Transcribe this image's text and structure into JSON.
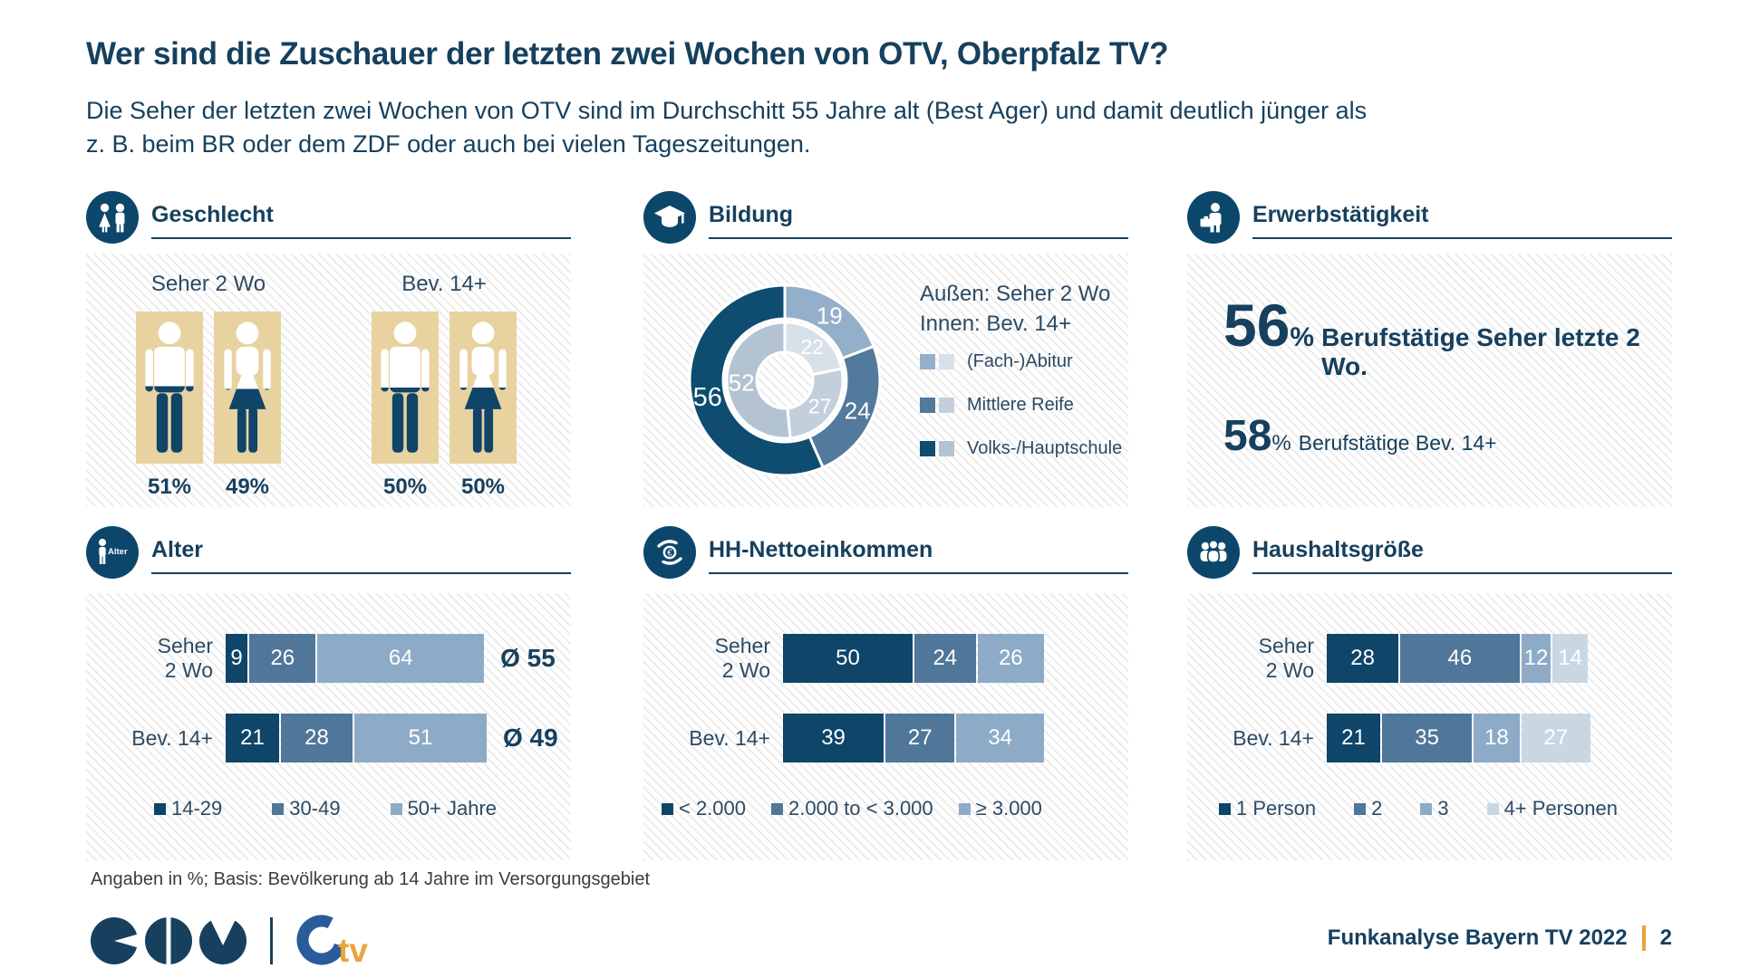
{
  "page": {
    "title": "Wer sind die Zuschauer der letzten zwei Wochen von OTV, Oberpfalz TV?",
    "subtitle": "Die Seher der letzten zwei Wochen von OTV sind im Durchschitt 55 Jahre alt (Best Ager) und damit deutlich jünger als\nz. B. beim BR oder dem ZDF oder auch bei vielen Tageszeitungen.",
    "footnote": "Angaben in %; Basis: Bevölkerung ab 14 Jahre im Versorgungsgebiet",
    "footer_right": {
      "label": "Funkanalyse Bayern TV 2022",
      "page_number": "2"
    }
  },
  "colors": {
    "navy": "#0e4569",
    "slate": "#50769a",
    "light": "#8dabc7",
    "pale": "#c9d7e3",
    "donut_outer": [
      "#94afca",
      "#53799c",
      "#0e4c70"
    ],
    "donut_inner": [
      "#d8e1e9",
      "#c3d0db",
      "#b3c3d1"
    ],
    "tan": "#e8d2a0",
    "icon_bg": "#0c476b",
    "accent_orange": "#e9a43b",
    "otv_blue": "#2a5b9b",
    "text_navy": "#16405e"
  },
  "panels": {
    "gender": {
      "title": "Geschlecht",
      "groups": [
        {
          "label": "Seher 2 Wo",
          "male_label": "51%",
          "female_label": "49%"
        },
        {
          "label": "Bev. 14+",
          "male_label": "50%",
          "female_label": "50%"
        }
      ]
    },
    "education": {
      "title": "Bildung",
      "note_outer": "Außen: Seher 2 Wo",
      "note_inner": "Innen: Bev. 14+",
      "legend": [
        "(Fach-)Abitur",
        "Mittlere Reife",
        "Volks-/Hauptschule"
      ]
    },
    "employment": {
      "title": "Erwerbstätigkeit",
      "stat1": {
        "value": "56",
        "unit": "%",
        "label": "Berufstätige Seher letzte 2 Wo."
      },
      "stat2": {
        "value": "58",
        "unit": "%",
        "label": "Berufstätige Bev. 14+"
      }
    },
    "age": {
      "title": "Alter",
      "row_labels": [
        "Seher\n2 Wo",
        "Bev. 14+"
      ],
      "avg_labels": [
        "Ø 55",
        "Ø 49"
      ]
    },
    "income": {
      "title": "HH-Nettoeinkommen",
      "row_labels": [
        "Seher\n2 Wo",
        "Bev. 14+"
      ]
    },
    "household": {
      "title": "Haushaltsgröße",
      "row_labels": [
        "Seher\n2 Wo",
        "Bev. 14+"
      ]
    }
  },
  "chart_data": [
    {
      "id": "gender",
      "type": "pictogram",
      "title": "Geschlecht",
      "groups": [
        {
          "label": "Seher 2 Wo",
          "male_pct": 51,
          "female_pct": 49
        },
        {
          "label": "Bev. 14+",
          "male_pct": 50,
          "female_pct": 50
        }
      ]
    },
    {
      "id": "education",
      "type": "donut",
      "title": "Bildung",
      "notes": [
        "Außen: Seher 2 Wo",
        "Innen: Bev. 14+"
      ],
      "categories": [
        "(Fach-)Abitur",
        "Mittlere Reife",
        "Volks-/Hauptschule"
      ],
      "series": [
        {
          "name": "Seher 2 Wo (außen)",
          "values": [
            19,
            24,
            56
          ]
        },
        {
          "name": "Bev. 14+ (innen)",
          "values": [
            22,
            27,
            52
          ]
        }
      ]
    },
    {
      "id": "employment",
      "type": "stat",
      "title": "Erwerbstätigkeit",
      "stats": [
        {
          "value": 56,
          "unit": "%",
          "label": "Berufstätige Seher letzte 2 Wo."
        },
        {
          "value": 58,
          "unit": "%",
          "label": "Berufstätige Bev. 14+"
        }
      ]
    },
    {
      "id": "age",
      "type": "stacked-bar",
      "title": "Alter",
      "categories": [
        "14-29",
        "30-49",
        "50+ Jahre"
      ],
      "rows": [
        {
          "label": "Seher 2 Wo",
          "values": [
            9,
            26,
            64
          ],
          "avg": 55
        },
        {
          "label": "Bev. 14+",
          "values": [
            21,
            28,
            51
          ],
          "avg": 49
        }
      ]
    },
    {
      "id": "income",
      "type": "stacked-bar",
      "title": "HH-Nettoeinkommen",
      "categories": [
        "< 2.000",
        "2.000 to < 3.000",
        "≥ 3.000"
      ],
      "rows": [
        {
          "label": "Seher 2 Wo",
          "values": [
            50,
            24,
            26
          ]
        },
        {
          "label": "Bev. 14+",
          "values": [
            39,
            27,
            34
          ]
        }
      ]
    },
    {
      "id": "household",
      "type": "stacked-bar",
      "title": "Haushaltsgröße",
      "categories": [
        "1 Person",
        "2",
        "3",
        "4+ Personen"
      ],
      "rows": [
        {
          "label": "Seher 2 Wo",
          "values": [
            28,
            46,
            12,
            14
          ]
        },
        {
          "label": "Bev. 14+",
          "values": [
            21,
            35,
            18,
            27
          ]
        }
      ]
    }
  ]
}
